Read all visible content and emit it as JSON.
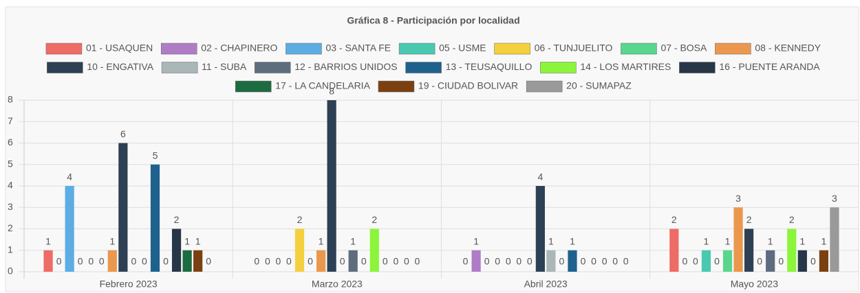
{
  "chart_data": {
    "type": "bar",
    "title": "Gráfica 8 - Participación por localidad",
    "categories": [
      "Febrero 2023",
      "Marzo 2023",
      "Abril 2023",
      "Mayo 2023"
    ],
    "series": [
      {
        "name": "01 - USAQUEN",
        "color": "#ef6b66",
        "values": [
          1,
          0,
          0,
          2
        ]
      },
      {
        "name": "02 - CHAPINERO",
        "color": "#b07cc6",
        "values": [
          0,
          0,
          1,
          0
        ]
      },
      {
        "name": "03 - SANTA FE",
        "color": "#5dade2",
        "values": [
          4,
          0,
          0,
          0
        ]
      },
      {
        "name": "05 - USME",
        "color": "#48c9b0",
        "values": [
          0,
          0,
          0,
          1
        ]
      },
      {
        "name": "06 - TUNJUELITO",
        "color": "#f4d03f",
        "values": [
          0,
          2,
          0,
          0
        ]
      },
      {
        "name": "07 - BOSA",
        "color": "#58d68d",
        "values": [
          0,
          0,
          0,
          1
        ]
      },
      {
        "name": "08 - KENNEDY",
        "color": "#eb984e",
        "values": [
          1,
          1,
          0,
          3
        ]
      },
      {
        "name": "10 - ENGATIVA",
        "color": "#2e4053",
        "values": [
          6,
          8,
          4,
          2
        ]
      },
      {
        "name": "11 - SUBA",
        "color": "#aab7b8",
        "values": [
          0,
          0,
          1,
          0
        ]
      },
      {
        "name": "12 - BARRIOS UNIDOS",
        "color": "#5d6d7e",
        "values": [
          0,
          1,
          0,
          1
        ]
      },
      {
        "name": "13 - TEUSAQUILLO",
        "color": "#1f618d",
        "values": [
          5,
          0,
          1,
          0
        ]
      },
      {
        "name": "14 - LOS MARTIRES",
        "color": "#8cf53b",
        "values": [
          0,
          2,
          0,
          2
        ]
      },
      {
        "name": "16 - PUENTE ARANDA",
        "color": "#283747",
        "values": [
          2,
          0,
          0,
          1
        ]
      },
      {
        "name": "17 - LA CANDELARIA",
        "color": "#1d6b40",
        "values": [
          1,
          0,
          0,
          0
        ]
      },
      {
        "name": "19 - CIUDAD BOLIVAR",
        "color": "#7b4012",
        "values": [
          1,
          0,
          0,
          1
        ]
      },
      {
        "name": "20 - SUMAPAZ",
        "color": "#999999",
        "values": [
          0,
          0,
          0,
          3
        ]
      }
    ],
    "ylim": [
      0,
      8
    ],
    "yticks": [
      0,
      1,
      2,
      3,
      4,
      5,
      6,
      7,
      8
    ],
    "grid": true,
    "legend": "top"
  }
}
